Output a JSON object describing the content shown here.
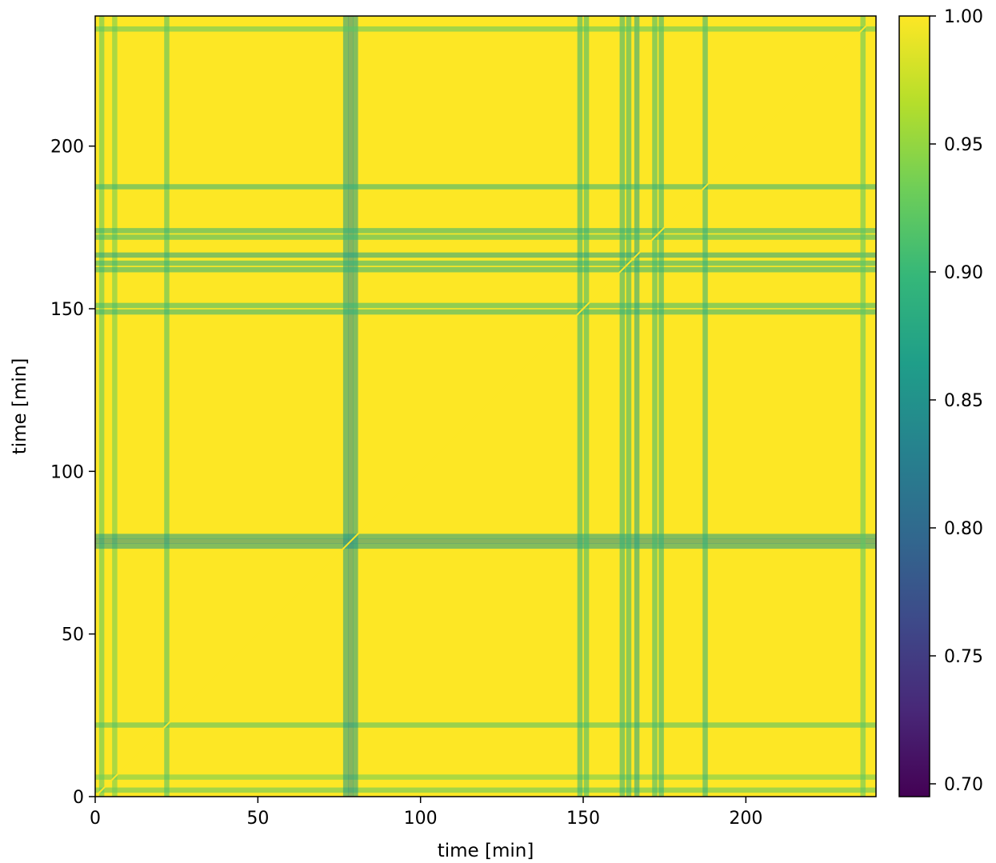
{
  "chart_data": {
    "type": "heatmap",
    "title": "",
    "xlabel": "time [min]",
    "ylabel": "time [min]",
    "xlim": [
      0,
      240
    ],
    "ylim": [
      0,
      240
    ],
    "x_ticks": [
      0,
      50,
      100,
      150,
      200
    ],
    "y_ticks": [
      0,
      50,
      100,
      150,
      200
    ],
    "x_tick_labels": [
      "0",
      "50",
      "100",
      "150",
      "200"
    ],
    "y_tick_labels": [
      "0",
      "50",
      "100",
      "150",
      "200"
    ],
    "grid": false,
    "colormap": "viridis",
    "colorbar": {
      "vmin": 0.695,
      "vmax": 1.0,
      "ticks": [
        0.7,
        0.75,
        0.8,
        0.85,
        0.9,
        0.95,
        1.0
      ],
      "tick_labels": [
        "0.70",
        "0.75",
        "0.80",
        "0.85",
        "0.90",
        "0.95",
        "1.00"
      ],
      "position": "right"
    },
    "matrix_note": "symmetric self-similarity matrix; values ~0.96–1.00 with lower-similarity bands",
    "low_similarity_times": [
      {
        "time": 2,
        "min_value": 0.92
      },
      {
        "time": 6,
        "min_value": 0.93
      },
      {
        "time": 22,
        "min_value": 0.91
      },
      {
        "time": 77,
        "min_value": 0.86
      },
      {
        "time": 78.5,
        "min_value": 0.84
      },
      {
        "time": 80,
        "min_value": 0.86
      },
      {
        "time": 149,
        "min_value": 0.89
      },
      {
        "time": 151,
        "min_value": 0.9
      },
      {
        "time": 162,
        "min_value": 0.89
      },
      {
        "time": 164,
        "min_value": 0.89
      },
      {
        "time": 166.5,
        "min_value": 0.87
      },
      {
        "time": 172,
        "min_value": 0.9
      },
      {
        "time": 174,
        "min_value": 0.89
      },
      {
        "time": 187.5,
        "min_value": 0.89
      },
      {
        "time": 236,
        "min_value": 0.92
      }
    ]
  },
  "colors": {
    "viridis": [
      "#440154",
      "#482878",
      "#3e4989",
      "#31688e",
      "#26828e",
      "#1f9e89",
      "#35b779",
      "#6ece58",
      "#b5de2b",
      "#fde725"
    ]
  }
}
